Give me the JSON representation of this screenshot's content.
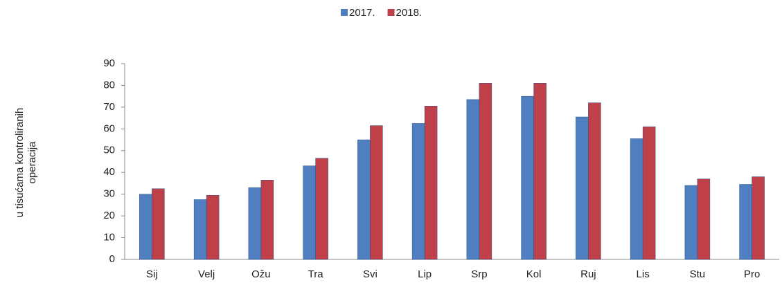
{
  "chart_data": {
    "type": "bar",
    "ylabel": [
      "u tisućama kontroliranih",
      "operacija"
    ],
    "categories": [
      "Sij",
      "Velj",
      "Ožu",
      "Tra",
      "Svi",
      "Lip",
      "Srp",
      "Kol",
      "Ruj",
      "Lis",
      "Stu",
      "Pro"
    ],
    "series": [
      {
        "name": "2017.",
        "color": "#4f7ec1",
        "values": [
          30,
          27.5,
          33,
          43,
          55,
          62.5,
          73.5,
          75,
          65.5,
          55.5,
          34,
          34.5
        ]
      },
      {
        "name": "2018.",
        "color": "#c0404a",
        "values": [
          32.5,
          29.5,
          36.5,
          46.5,
          61.5,
          70.5,
          81,
          81,
          72,
          61,
          37,
          38
        ]
      }
    ],
    "ylim": [
      0,
      90
    ],
    "yticks": [
      0,
      10,
      20,
      30,
      40,
      50,
      60,
      70,
      80,
      90
    ],
    "legend": "top"
  }
}
